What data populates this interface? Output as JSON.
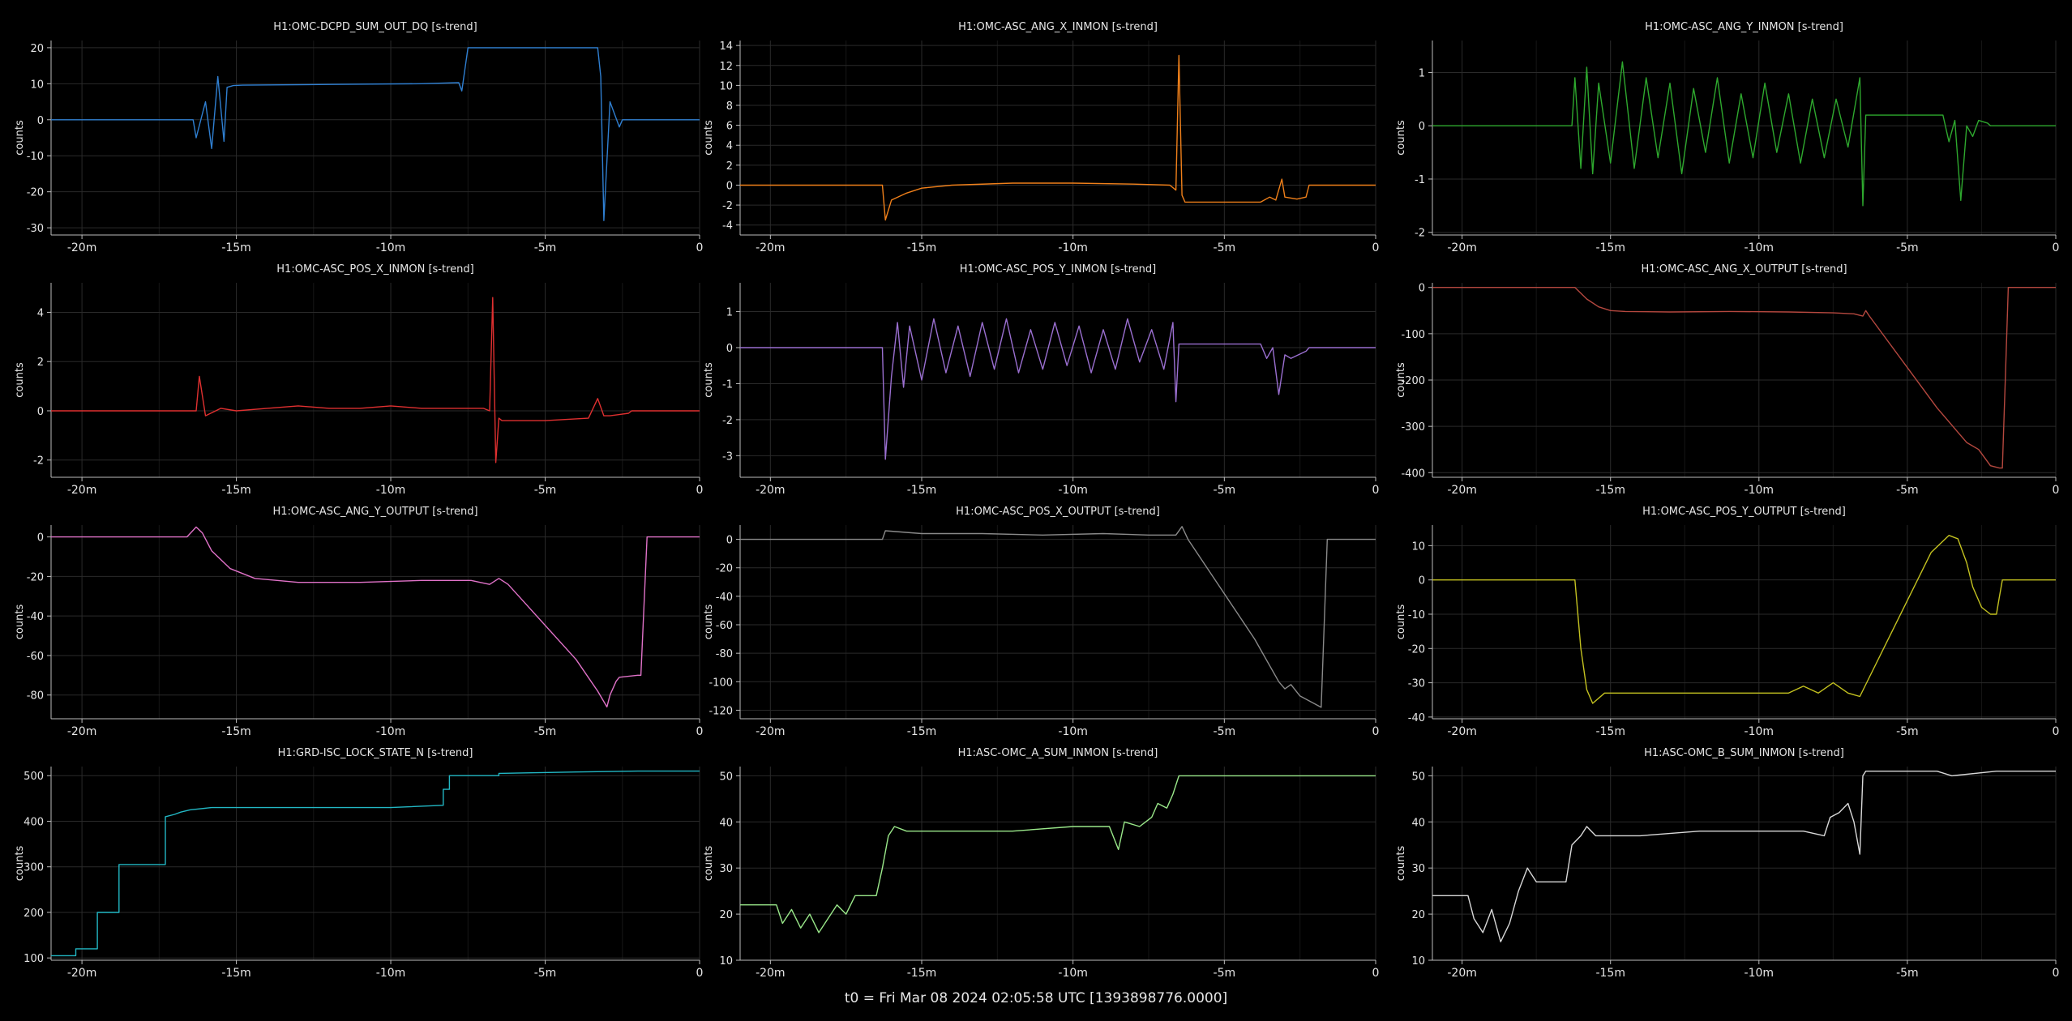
{
  "footer": "t0 = Fri Mar 08 2024 02:05:58 UTC [1393898776.0000]",
  "xticks": [
    -20,
    -15,
    -10,
    -5,
    0
  ],
  "xtick_labels": [
    "-20m",
    "-15m",
    "-10m",
    "-5m",
    "0"
  ],
  "xlim": [
    -21,
    0
  ],
  "chart_data": [
    {
      "type": "line",
      "title": "H1:OMC-DCPD_SUM_OUT_DQ [s-trend]",
      "ylabel": "counts",
      "ylim": [
        -32,
        22
      ],
      "yticks": [
        -30,
        -20,
        -10,
        0,
        10,
        20
      ],
      "color": "#2f7fd1",
      "x": [
        -21,
        -16.4,
        -16.3,
        -16.0,
        -15.8,
        -15.6,
        -15.4,
        -15.3,
        -15.1,
        -14.8,
        -12,
        -9,
        -7.8,
        -7.7,
        -7.5,
        -6.5,
        -4,
        -3.3,
        -3.2,
        -3.1,
        -2.9,
        -2.6,
        -2.5,
        -1,
        0
      ],
      "y": [
        0,
        0,
        -5,
        5,
        -8,
        12,
        -6,
        9,
        9.5,
        9.6,
        9.8,
        10,
        10.3,
        8,
        20,
        20,
        20,
        20,
        12,
        -28,
        5,
        -2,
        0,
        0,
        0
      ]
    },
    {
      "type": "line",
      "title": "H1:OMC-ASC_ANG_X_INMON [s-trend]",
      "ylabel": "counts",
      "ylim": [
        -5,
        14.5
      ],
      "yticks": [
        -4,
        -2,
        0,
        2,
        4,
        6,
        8,
        10,
        12,
        14
      ],
      "color": "#f0801a",
      "x": [
        -21,
        -16.3,
        -16.2,
        -16.0,
        -15.5,
        -15.0,
        -14.0,
        -12.0,
        -10.0,
        -8.0,
        -6.8,
        -6.6,
        -6.5,
        -6.4,
        -6.3,
        -5.0,
        -3.8,
        -3.5,
        -3.3,
        -3.1,
        -3.0,
        -2.6,
        -2.3,
        -2.2,
        -1,
        0
      ],
      "y": [
        0,
        0,
        -3.5,
        -1.5,
        -0.8,
        -0.3,
        0,
        0.2,
        0.2,
        0.1,
        0,
        -0.5,
        13,
        -1,
        -1.7,
        -1.7,
        -1.7,
        -1.2,
        -1.5,
        0.6,
        -1.2,
        -1.4,
        -1.2,
        0,
        0,
        0
      ]
    },
    {
      "type": "line",
      "title": "H1:OMC-ASC_ANG_Y_INMON [s-trend]",
      "ylabel": "counts",
      "ylim": [
        -2.05,
        1.6
      ],
      "yticks": [
        -2,
        -1,
        0,
        1
      ],
      "color": "#2ea82e",
      "x": [
        -21,
        -16.3,
        -16.2,
        -16.0,
        -15.8,
        -15.6,
        -15.4,
        -15.0,
        -14.6,
        -14.2,
        -13.8,
        -13.4,
        -13.0,
        -12.6,
        -12.2,
        -11.8,
        -11.4,
        -11.0,
        -10.6,
        -10.2,
        -9.8,
        -9.4,
        -9.0,
        -8.6,
        -8.2,
        -7.8,
        -7.4,
        -7.0,
        -6.6,
        -6.5,
        -6.4,
        -6.3,
        -5.0,
        -3.8,
        -3.6,
        -3.4,
        -3.2,
        -3.0,
        -2.8,
        -2.6,
        -2.3,
        -2.2,
        -1,
        0
      ],
      "y": [
        0,
        0,
        0.9,
        -0.8,
        1.1,
        -0.9,
        0.8,
        -0.7,
        1.2,
        -0.8,
        0.9,
        -0.6,
        0.8,
        -0.9,
        0.7,
        -0.5,
        0.9,
        -0.7,
        0.6,
        -0.6,
        0.8,
        -0.5,
        0.6,
        -0.7,
        0.5,
        -0.6,
        0.5,
        -0.4,
        0.9,
        -1.5,
        0.2,
        0.2,
        0.2,
        0.2,
        -0.3,
        0.1,
        -1.4,
        0.0,
        -0.2,
        0.1,
        0.05,
        0,
        0,
        0
      ]
    },
    {
      "type": "line",
      "title": "H1:OMC-ASC_POS_X_INMON [s-trend]",
      "ylabel": "counts",
      "ylim": [
        -2.7,
        5.2
      ],
      "yticks": [
        -2,
        0,
        2,
        4
      ],
      "color": "#e03030",
      "x": [
        -21,
        -16.3,
        -16.2,
        -16.0,
        -15.5,
        -15.0,
        -14.0,
        -13.0,
        -12.0,
        -11.0,
        -10.0,
        -9.0,
        -8.0,
        -7.0,
        -6.8,
        -6.7,
        -6.6,
        -6.5,
        -6.4,
        -5.0,
        -3.6,
        -3.3,
        -3.1,
        -2.9,
        -2.3,
        -2.2,
        -1,
        0
      ],
      "y": [
        0,
        0,
        1.4,
        -0.2,
        0.1,
        0,
        0.1,
        0.2,
        0.1,
        0.1,
        0.2,
        0.1,
        0.1,
        0.1,
        0,
        4.6,
        -2.1,
        -0.3,
        -0.4,
        -0.4,
        -0.3,
        0.5,
        -0.2,
        -0.2,
        -0.1,
        0,
        0,
        0
      ]
    },
    {
      "type": "line",
      "title": "H1:OMC-ASC_POS_Y_INMON [s-trend]",
      "ylabel": "counts",
      "ylim": [
        -3.6,
        1.8
      ],
      "yticks": [
        -3,
        -2,
        -1,
        0,
        1
      ],
      "color": "#9a6fd0",
      "x": [
        -21,
        -16.3,
        -16.2,
        -16.0,
        -15.8,
        -15.6,
        -15.4,
        -15.0,
        -14.6,
        -14.2,
        -13.8,
        -13.4,
        -13.0,
        -12.6,
        -12.2,
        -11.8,
        -11.4,
        -11.0,
        -10.6,
        -10.2,
        -9.8,
        -9.4,
        -9.0,
        -8.6,
        -8.2,
        -7.8,
        -7.4,
        -7.0,
        -6.7,
        -6.6,
        -6.5,
        -6.4,
        -5.0,
        -3.8,
        -3.6,
        -3.4,
        -3.2,
        -3.0,
        -2.8,
        -2.3,
        -2.2,
        -1,
        0
      ],
      "y": [
        0,
        0,
        -3.1,
        -0.8,
        0.7,
        -1.1,
        0.6,
        -0.9,
        0.8,
        -0.7,
        0.6,
        -0.8,
        0.7,
        -0.6,
        0.8,
        -0.7,
        0.5,
        -0.6,
        0.7,
        -0.5,
        0.6,
        -0.7,
        0.5,
        -0.6,
        0.8,
        -0.4,
        0.5,
        -0.6,
        0.7,
        -1.5,
        0.1,
        0.1,
        0.1,
        0.1,
        -0.3,
        0.0,
        -1.3,
        -0.2,
        -0.3,
        -0.1,
        0,
        0,
        0
      ]
    },
    {
      "type": "line",
      "title": "H1:OMC-ASC_ANG_X_OUTPUT [s-trend]",
      "ylabel": "counts",
      "ylim": [
        -410,
        10
      ],
      "yticks": [
        -400,
        -300,
        -200,
        -100,
        0
      ],
      "color": "#b5483f",
      "x": [
        -21,
        -16.2,
        -15.8,
        -15.4,
        -15.0,
        -14.5,
        -13.0,
        -11.0,
        -9.0,
        -7.5,
        -6.8,
        -6.5,
        -6.4,
        -6.3,
        -4.0,
        -3.0,
        -2.6,
        -2.2,
        -1.9,
        -1.8,
        -1.7,
        -1.6,
        -1,
        0
      ],
      "y": [
        0,
        0,
        -25,
        -42,
        -50,
        -52,
        -53,
        -52,
        -53,
        -55,
        -57,
        -62,
        -50,
        -60,
        -260,
        -335,
        -350,
        -385,
        -390,
        -390,
        -200,
        0,
        0,
        0
      ]
    },
    {
      "type": "line",
      "title": "H1:OMC-ASC_ANG_Y_OUTPUT [s-trend]",
      "ylabel": "counts",
      "ylim": [
        -92,
        6
      ],
      "yticks": [
        -80,
        -60,
        -40,
        -20,
        0
      ],
      "color": "#e072c8",
      "x": [
        -21,
        -16.6,
        -16.3,
        -16.1,
        -15.8,
        -15.2,
        -14.4,
        -13.0,
        -11.0,
        -9.0,
        -7.4,
        -6.8,
        -6.5,
        -6.3,
        -6.2,
        -4.0,
        -3.3,
        -3.0,
        -2.9,
        -2.7,
        -2.6,
        -2.0,
        -1.9,
        -1.8,
        -1.7,
        -1,
        0
      ],
      "y": [
        0,
        0,
        5,
        2,
        -7,
        -16,
        -21,
        -23,
        -23,
        -22,
        -22,
        -24,
        -21,
        -23,
        -24,
        -62,
        -78,
        -86,
        -80,
        -73,
        -71,
        -70,
        -70,
        -35,
        0,
        0,
        0
      ]
    },
    {
      "type": "line",
      "title": "H1:OMC-ASC_POS_X_OUTPUT [s-trend]",
      "ylabel": "counts",
      "ylim": [
        -126,
        10
      ],
      "yticks": [
        -120,
        -100,
        -80,
        -60,
        -40,
        -20,
        0
      ],
      "color": "#8a8a8a",
      "x": [
        -21,
        -16.3,
        -16.2,
        -15.0,
        -13.0,
        -11.0,
        -9.0,
        -7.5,
        -6.6,
        -6.4,
        -6.2,
        -4.0,
        -3.2,
        -3.0,
        -2.8,
        -2.5,
        -1.8,
        -1.7,
        -1.6,
        -1,
        0
      ],
      "y": [
        0,
        0,
        6,
        4,
        4,
        3,
        4,
        3,
        3,
        9,
        0,
        -70,
        -100,
        -105,
        -102,
        -110,
        -118,
        -60,
        0,
        0,
        0
      ]
    },
    {
      "type": "line",
      "title": "H1:OMC-ASC_POS_Y_OUTPUT [s-trend]",
      "ylabel": "counts",
      "ylim": [
        -40.5,
        16
      ],
      "yticks": [
        -40,
        -30,
        -20,
        -10,
        0,
        10
      ],
      "color": "#c4c220",
      "x": [
        -21,
        -16.2,
        -16.0,
        -15.8,
        -15.6,
        -15.2,
        -14.0,
        -12.0,
        -10.0,
        -9.0,
        -8.5,
        -8.0,
        -7.5,
        -7.0,
        -6.6,
        -4.2,
        -3.6,
        -3.3,
        -3.0,
        -2.8,
        -2.5,
        -2.2,
        -2.0,
        -1.9,
        -1.8,
        -1,
        0
      ],
      "y": [
        0,
        0,
        -20,
        -32,
        -36,
        -33,
        -33,
        -33,
        -33,
        -33,
        -31,
        -33,
        -30,
        -33,
        -34,
        8,
        13,
        12,
        5,
        -2,
        -8,
        -10,
        -10,
        -5,
        0,
        0,
        0
      ]
    },
    {
      "type": "line",
      "title": "H1:GRD-ISC_LOCK_STATE_N [s-trend]",
      "ylabel": "counts",
      "ylim": [
        95,
        520
      ],
      "yticks": [
        100,
        200,
        300,
        400,
        500
      ],
      "color": "#22b7c4",
      "x": [
        -21,
        -20.2,
        -20.2,
        -19.5,
        -19.5,
        -18.8,
        -18.8,
        -17.3,
        -17.3,
        -17.0,
        -16.8,
        -16.5,
        -15.8,
        -15.8,
        -10.0,
        -8.3,
        -8.3,
        -8.1,
        -8.1,
        -6.5,
        -6.5,
        -4.0,
        -2.0,
        0
      ],
      "y": [
        105,
        105,
        120,
        120,
        200,
        200,
        305,
        305,
        410,
        415,
        420,
        425,
        430,
        430,
        430,
        435,
        470,
        470,
        500,
        500,
        505,
        508,
        510,
        510
      ]
    },
    {
      "type": "line",
      "title": "H1:ASC-OMC_A_SUM_INMON [s-trend]",
      "ylabel": "counts",
      "ylim": [
        10,
        52
      ],
      "yticks": [
        10,
        20,
        30,
        40,
        50
      ],
      "color": "#9ae88a",
      "x": [
        -21,
        -19.8,
        -19.6,
        -19.3,
        -19.0,
        -18.7,
        -18.4,
        -18.1,
        -17.8,
        -17.5,
        -17.2,
        -16.5,
        -16.3,
        -16.1,
        -15.9,
        -15.5,
        -14.0,
        -12.0,
        -10.0,
        -8.8,
        -8.5,
        -8.3,
        -7.8,
        -7.4,
        -7.2,
        -6.9,
        -6.7,
        -6.5,
        -6.4,
        -4.0,
        -2.0,
        0
      ],
      "y": [
        22,
        22,
        18,
        21,
        17,
        20,
        16,
        19,
        22,
        20,
        24,
        24,
        30,
        37,
        39,
        38,
        38,
        38,
        39,
        39,
        34,
        40,
        39,
        41,
        44,
        43,
        46,
        50,
        50,
        50,
        50,
        50
      ]
    },
    {
      "type": "line",
      "title": "H1:ASC-OMC_B_SUM_INMON [s-trend]",
      "ylabel": "counts",
      "ylim": [
        10,
        52
      ],
      "yticks": [
        10,
        20,
        30,
        40,
        50
      ],
      "color": "#d8d8d8",
      "x": [
        -21,
        -19.8,
        -19.6,
        -19.3,
        -19.0,
        -18.7,
        -18.4,
        -18.1,
        -17.8,
        -17.5,
        -17.2,
        -16.5,
        -16.3,
        -16.0,
        -15.8,
        -15.5,
        -14.0,
        -12.0,
        -10.0,
        -8.5,
        -7.8,
        -7.6,
        -7.3,
        -7.0,
        -6.8,
        -6.6,
        -6.5,
        -6.4,
        -4.0,
        -3.5,
        -2.0,
        0
      ],
      "y": [
        24,
        24,
        19,
        16,
        21,
        14,
        18,
        25,
        30,
        27,
        27,
        27,
        35,
        37,
        39,
        37,
        37,
        38,
        38,
        38,
        37,
        41,
        42,
        44,
        40,
        33,
        50,
        51,
        51,
        50,
        51,
        51
      ]
    }
  ]
}
